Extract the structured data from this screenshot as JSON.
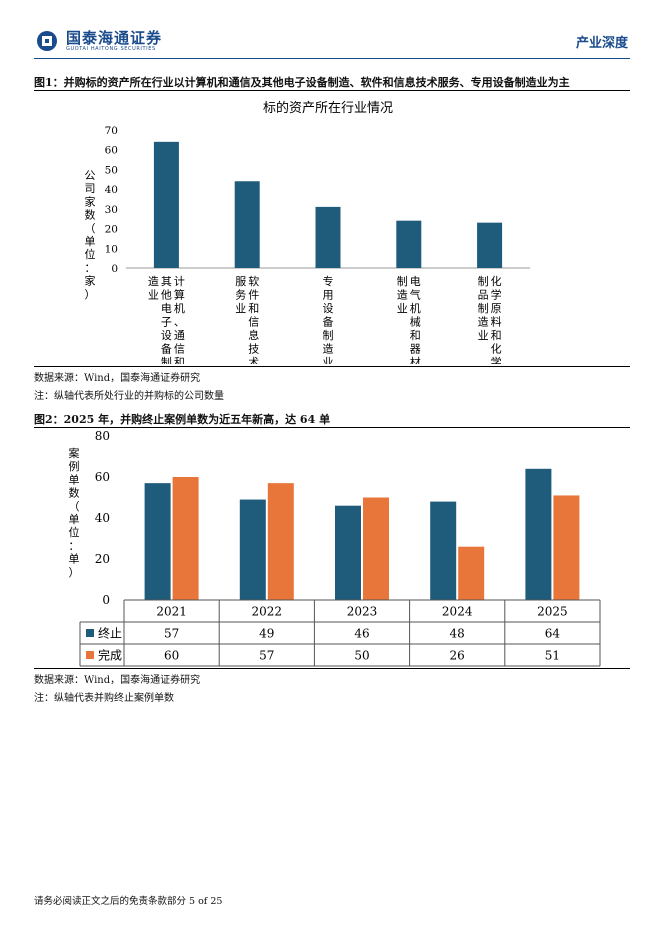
{
  "header": {
    "company": "国泰海通证券",
    "company_en": "GUOTAI HAITONG SECURITIES",
    "report_type": "产业深度"
  },
  "figure1": {
    "title": "图1：并购标的资产所在行业以计算机和通信及其他电子设备制造、软件和信息技术服务、专用设备制造业为主",
    "source": "数据来源：Wind，国泰海通证券研究",
    "note": "注：纵轴代表所处行业的并购标的公司数量"
  },
  "figure2": {
    "title": "图2：2025 年，并购终止案例单数为近五年新高，达 64 单",
    "source": "数据来源：Wind，国泰海通证券研究",
    "note": "注：纵轴代表并购终止案例单数"
  },
  "chart_data": [
    {
      "type": "bar",
      "title": "标的资产所在行业情况",
      "ylabel": "公司家数（单位：家）",
      "categories": [
        "计算机、通信和其他电子设备制造业",
        "软件和信息技术服务业",
        "专用设备制造业",
        "电气机械和器材制造业",
        "化学原料和化学制品制造业"
      ],
      "values": [
        64,
        44,
        31,
        24,
        23
      ],
      "ylim": [
        0,
        70
      ],
      "yticks": [
        0,
        10,
        20,
        30,
        40,
        50,
        60,
        70
      ],
      "colors": {
        "bar": "#1f5b7a"
      },
      "grid": false
    },
    {
      "type": "bar",
      "ylabel": "案例单数（单位：单）",
      "categories": [
        "2021",
        "2022",
        "2023",
        "2024",
        "2025"
      ],
      "series": [
        {
          "name": "终止",
          "values": [
            57,
            49,
            46,
            48,
            64
          ],
          "color": "#1f5b7a"
        },
        {
          "name": "完成",
          "values": [
            60,
            57,
            50,
            26,
            51
          ],
          "color": "#e8753a"
        }
      ],
      "ylim": [
        0,
        80
      ],
      "yticks": [
        0,
        20,
        40,
        60,
        80
      ],
      "legend": "data-table",
      "grid": false
    }
  ],
  "footer": {
    "text": "请务必阅读正文之后的免责条款部分 5 of 25"
  }
}
